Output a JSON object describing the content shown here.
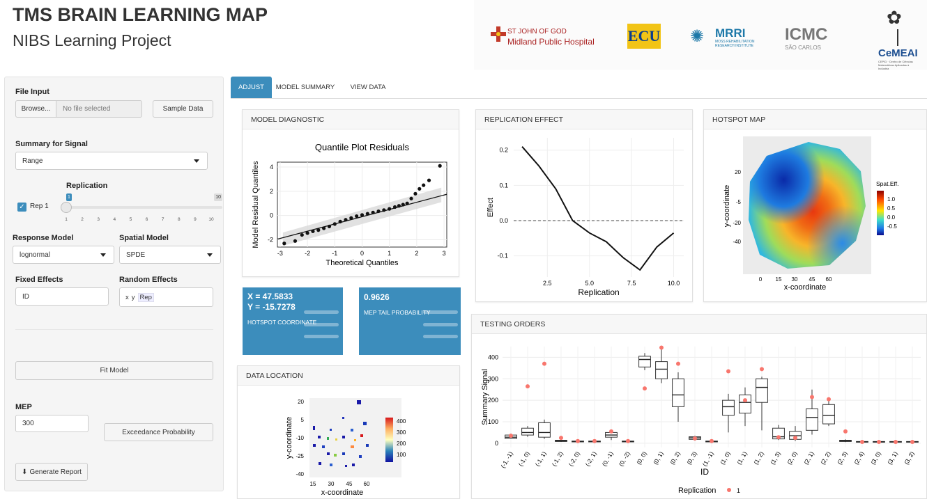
{
  "header": {
    "title": "TMS BRAIN LEARNING MAP",
    "subtitle": "NIBS Learning Project"
  },
  "logos": {
    "stjohn_line1": "ST JOHN OF GOD",
    "stjohn_line2": "Midland Public Hospital",
    "ecu": "ECU",
    "mrri": "MRRI",
    "mrri_sub": "MOSS REHABILITATION RESEARCH INSTITUTE",
    "icmc": "ICMC",
    "icmc_sub": "SÃO CARLOS",
    "cemeai": "CeMEAI",
    "cemeai_sub": "CEPID · Centro de Ciências Matemáticas Aplicadas à Indústria"
  },
  "sidebar": {
    "file_input_label": "File Input",
    "browse_label": "Browse...",
    "file_placeholder": "No file selected",
    "sample_data_label": "Sample Data",
    "summary_label": "Summary for Signal",
    "summary_value": "Range",
    "replication_label": "Replication",
    "rep_checkbox_label": "Rep 1",
    "slider_value": "1",
    "slider_max": "10",
    "slider_value_fraction": 0.0,
    "slider_ticks": [
      "1",
      "2",
      "3",
      "4",
      "5",
      "6",
      "7",
      "8",
      "9",
      "10"
    ],
    "response_model_label": "Response Model",
    "response_model_value": "lognormal",
    "spatial_model_label": "Spatial Model",
    "spatial_model_value": "SPDE",
    "fixed_effects_label": "Fixed Effects",
    "fixed_effects_value": "ID",
    "random_effects_label": "Random Effects",
    "random_effects_tags": [
      "x",
      "y",
      "Rep"
    ],
    "fit_model_label": "Fit Model",
    "mep_label": "MEP",
    "mep_value": "300",
    "exceedance_label": "Exceedance Probability",
    "generate_report_label": "Generate Report"
  },
  "tabs": [
    {
      "label": "ADJUST"
    },
    {
      "label": "MODEL SUMMARY"
    },
    {
      "label": "VIEW DATA"
    }
  ],
  "panels": {
    "model_diagnostic": "MODEL DIAGNOSTIC",
    "replication_effect": "REPLICATION EFFECT",
    "hotspot_map": "HOTSPOT MAP",
    "data_location": "DATA LOCATION",
    "testing_orders": "TESTING ORDERS"
  },
  "valueboxes": {
    "hotspot_x": "X = 47.5833",
    "hotspot_y": "Y = -15.7278",
    "hotspot_label": "HOTSPOT COORDINATE",
    "mep_tail": "0.9626",
    "mep_tail_label": "MEP TAIL PROBABILITY"
  },
  "colors": {
    "accent": "#3c8dbc",
    "point_red": "#f8766d"
  },
  "chart_data": [
    {
      "type": "scatter",
      "title": "Quantile Plot Residuals",
      "xlabel": "Theoretical Quantiles",
      "ylabel": "Model Residual Quantiles",
      "xlim": [
        -3.1,
        3.1
      ],
      "ylim": [
        -2.6,
        4.4
      ],
      "xticks": [
        "-3",
        "-2",
        "-1",
        "0",
        "1",
        "2",
        "3"
      ],
      "yticks": [
        "-2",
        "0",
        "2",
        "4"
      ],
      "x": [
        -2.85,
        -2.45,
        -2.2,
        -2.0,
        -1.8,
        -1.6,
        -1.4,
        -1.2,
        -1.0,
        -0.8,
        -0.6,
        -0.4,
        -0.2,
        0.0,
        0.2,
        0.4,
        0.6,
        0.8,
        1.0,
        1.2,
        1.35,
        1.5,
        1.65,
        1.8,
        1.95,
        2.1,
        2.25,
        2.45,
        2.85
      ],
      "values": [
        -2.3,
        -2.1,
        -1.6,
        -1.45,
        -1.3,
        -1.2,
        -1.05,
        -0.9,
        -0.7,
        -0.5,
        -0.35,
        -0.2,
        -0.05,
        0.05,
        0.15,
        0.25,
        0.35,
        0.45,
        0.55,
        0.7,
        0.8,
        0.9,
        1.0,
        1.4,
        1.8,
        2.2,
        2.5,
        2.9,
        4.1
      ]
    },
    {
      "type": "line",
      "xlabel": "Replication",
      "ylabel": "Effect",
      "xlim": [
        0.5,
        10.6
      ],
      "ylim": [
        -0.16,
        0.235
      ],
      "xticks": [
        "2.5",
        "5.0",
        "7.5",
        "10.0"
      ],
      "yticks": [
        "-0.1",
        "0.0",
        "0.1",
        "0.2"
      ],
      "x": [
        1,
        2,
        3,
        4,
        5,
        6,
        7,
        8,
        9,
        10
      ],
      "values": [
        0.21,
        0.155,
        0.09,
        0.0,
        -0.035,
        -0.06,
        -0.105,
        -0.14,
        -0.075,
        -0.035
      ]
    },
    {
      "type": "heatmap",
      "xlabel": "x-coordinate",
      "ylabel": "y-coordinate",
      "xticks": [
        "0",
        "15",
        "30",
        "45",
        "60"
      ],
      "yticks": [
        "20",
        "-5",
        "-20",
        "-40"
      ],
      "legend_title": "Spat.Eff.",
      "legend_ticks": [
        "1.0",
        "0.5",
        "0.0",
        "-0.5"
      ]
    },
    {
      "type": "scatter",
      "xlabel": "x-coordinate",
      "ylabel": "y-coordinate",
      "xticks": [
        "15",
        "30",
        "45",
        "60"
      ],
      "yticks": [
        "20",
        "5",
        "-10",
        "-25",
        "-40"
      ],
      "legend_ticks": [
        "400",
        "300",
        "200",
        "100"
      ]
    },
    {
      "type": "bar",
      "xlabel": "ID",
      "ylabel": "Summary Signal",
      "ylim": [
        -20,
        450
      ],
      "yticks": [
        "0",
        "100",
        "200",
        "300",
        "400"
      ],
      "legend_title": "Replication",
      "legend_entry": "1",
      "categories": [
        "(-1, -1)",
        "(-1, 0)",
        "(-1, 1)",
        "(-1, 2)",
        "(-2, 0)",
        "(-2, 1)",
        "(0, -1)",
        "(0, -2)",
        "(0, 0)",
        "(0, 1)",
        "(0, 2)",
        "(0, 3)",
        "(1, -1)",
        "(1, 0)",
        "(1, 1)",
        "(1, 2)",
        "(1, 3)",
        "(2, 0)",
        "(2, 1)",
        "(2, 2)",
        "(2, 3)",
        "(2, 4)",
        "(3, 0)",
        "(3, 1)",
        "(3, 2)"
      ],
      "box_q1": [
        22,
        38,
        28,
        8,
        6,
        6,
        28,
        6,
        355,
        300,
        170,
        18,
        6,
        130,
        140,
        190,
        20,
        18,
        60,
        90,
        8,
        5,
        5,
        5,
        5
      ],
      "box_median": [
        28,
        50,
        50,
        10,
        8,
        8,
        38,
        8,
        390,
        345,
        225,
        25,
        8,
        170,
        190,
        260,
        30,
        35,
        120,
        130,
        10,
        6,
        6,
        6,
        6
      ],
      "box_q3": [
        38,
        70,
        95,
        14,
        10,
        10,
        50,
        10,
        405,
        380,
        300,
        30,
        10,
        200,
        225,
        300,
        70,
        55,
        160,
        180,
        14,
        8,
        8,
        8,
        8
      ],
      "whisker_low": [
        20,
        30,
        20,
        6,
        4,
        4,
        15,
        4,
        340,
        280,
        100,
        12,
        4,
        50,
        80,
        60,
        15,
        10,
        40,
        80,
        5,
        4,
        4,
        4,
        4
      ],
      "whisker_high": [
        45,
        80,
        110,
        16,
        12,
        12,
        55,
        12,
        420,
        445,
        330,
        35,
        12,
        230,
        260,
        310,
        85,
        80,
        250,
        210,
        18,
        10,
        10,
        10,
        10
      ],
      "values": [
        35,
        265,
        370,
        25,
        10,
        10,
        55,
        10,
        255,
        445,
        370,
        22,
        10,
        335,
        200,
        345,
        28,
        25,
        215,
        205,
        55,
        6,
        6,
        6,
        6
      ]
    }
  ]
}
